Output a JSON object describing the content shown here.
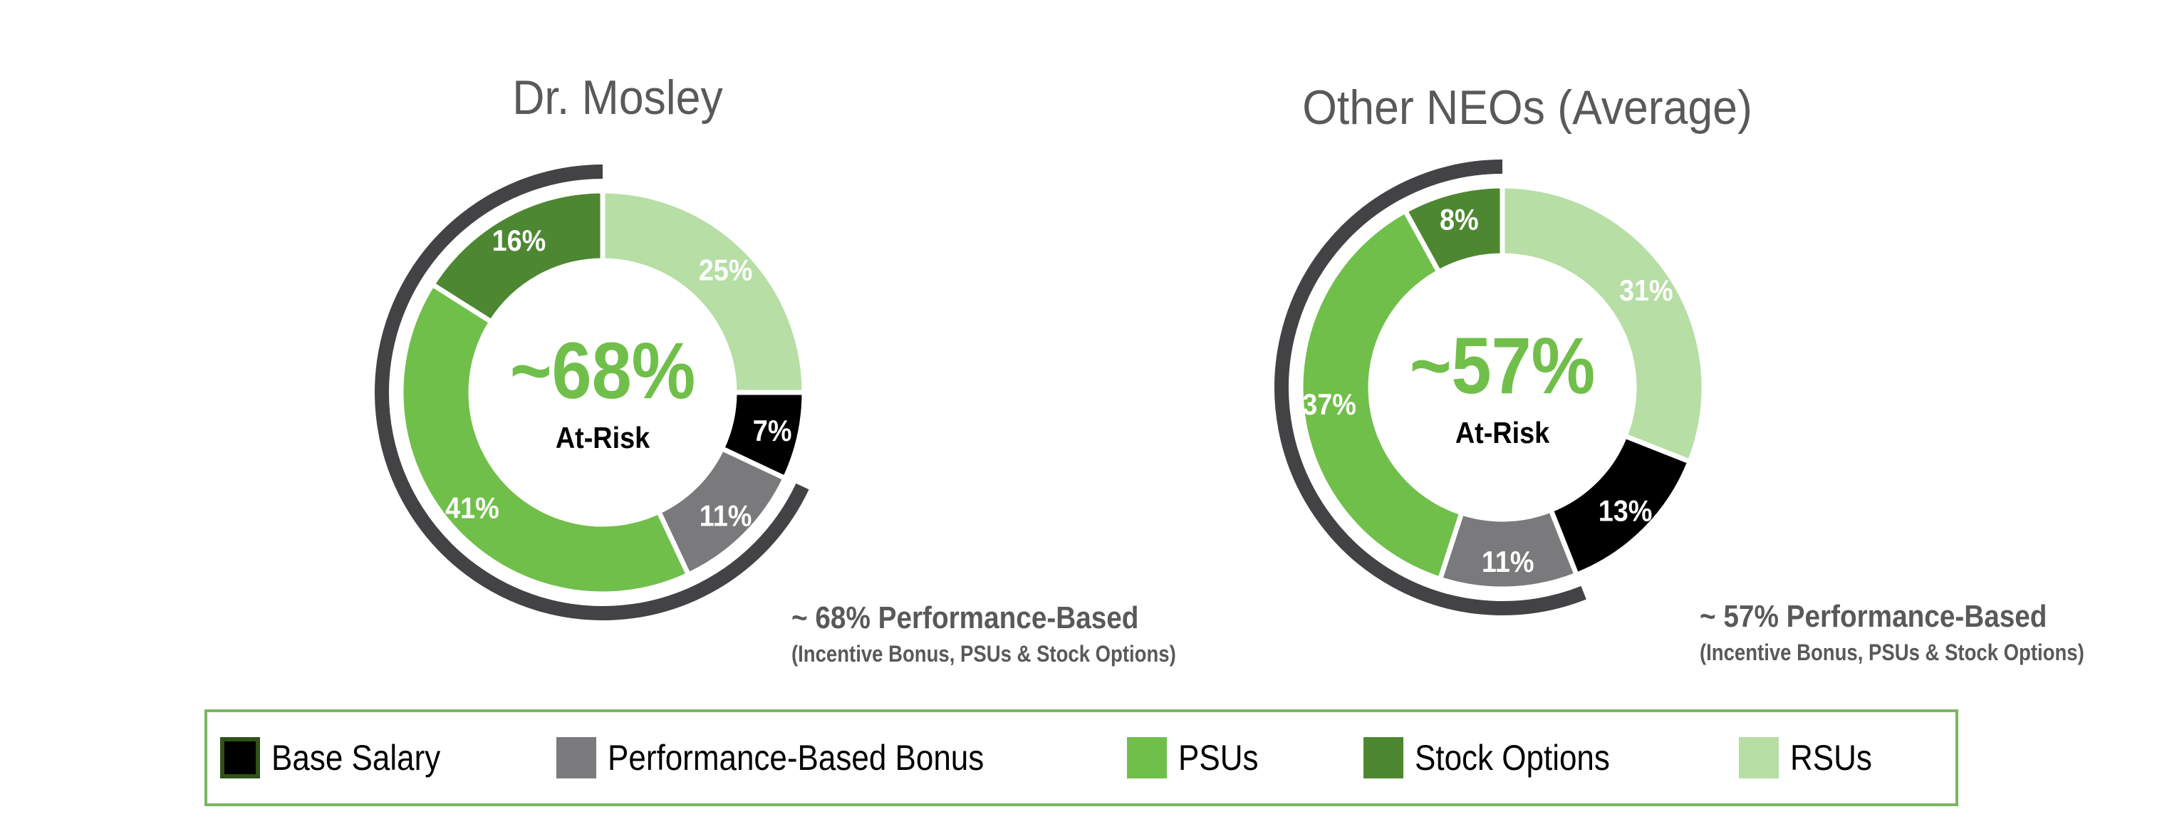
{
  "colors": {
    "base_salary": "#000000",
    "bonus": "#7a7a7c",
    "psus": "#70bf4a",
    "stock_options": "#4e8732",
    "rsus": "#b6dea5",
    "perf_arc": "#434345",
    "accent_green": "#70bf4a",
    "title_gray": "#595959",
    "legend_border": "#7bb661",
    "base_salary_swatch_border": "#2f5219"
  },
  "charts": [
    {
      "title": "Dr. Mosley",
      "center_value": "~68%",
      "center_label": "At-Risk",
      "annotation_line1": "~ 68% Performance-Based",
      "annotation_line2": "(Incentive Bonus, PSUs & Stock Options)"
    },
    {
      "title": "Other NEOs (Average)",
      "center_value": "~57%",
      "center_label": "At-Risk",
      "annotation_line1": "~ 57% Performance-Based",
      "annotation_line2": "(Incentive Bonus, PSUs & Stock Options)"
    }
  ],
  "legend": [
    {
      "key": "base_salary",
      "label": "Base Salary"
    },
    {
      "key": "bonus",
      "label": "Performance-Based Bonus"
    },
    {
      "key": "psus",
      "label": "PSUs"
    },
    {
      "key": "stock_options",
      "label": "Stock Options"
    },
    {
      "key": "rsus",
      "label": "RSUs"
    }
  ],
  "chart_data": [
    {
      "type": "pie",
      "subtype": "donut",
      "title": "Dr. Mosley",
      "center_text": "~68% At-Risk",
      "categories": [
        "RSUs",
        "Base Salary",
        "Performance-Based Bonus",
        "PSUs",
        "Stock Options"
      ],
      "values": [
        25,
        7,
        11,
        41,
        16
      ],
      "labels": [
        "25%",
        "7%",
        "11%",
        "41%",
        "16%"
      ],
      "annotation": "~ 68% Performance-Based (Incentive Bonus, PSUs & Stock Options)",
      "performance_based_total": 68,
      "legend_position": "bottom"
    },
    {
      "type": "pie",
      "subtype": "donut",
      "title": "Other NEOs (Average)",
      "center_text": "~57% At-Risk",
      "categories": [
        "RSUs",
        "Base Salary",
        "Performance-Based Bonus",
        "PSUs",
        "Stock Options"
      ],
      "values": [
        31,
        13,
        11,
        37,
        8
      ],
      "labels": [
        "31%",
        "13%",
        "11%",
        "37%",
        "8%"
      ],
      "annotation": "~ 57% Performance-Based (Incentive Bonus, PSUs & Stock Options)",
      "performance_based_total": 57,
      "legend_position": "bottom"
    }
  ]
}
